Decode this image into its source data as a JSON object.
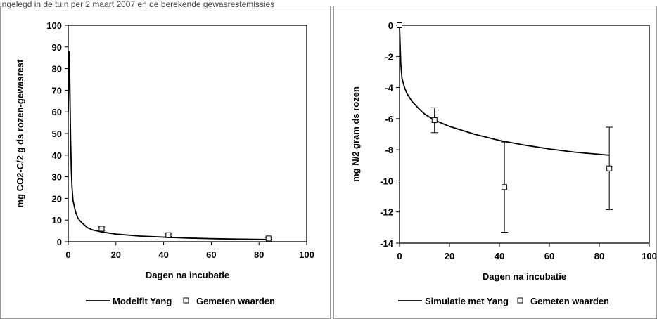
{
  "caption_fragment": "ingelegd in de tuin per 2 maart 2007 en de berekende gewasrestemissies",
  "chart_data": [
    {
      "type": "line",
      "xlabel": "Dagen na incubatie",
      "ylabel": "mg CO2-C/2 g ds rozen-gewasrest",
      "xlim": [
        0,
        100
      ],
      "ylim": [
        0,
        100
      ],
      "xticks": [
        0,
        20,
        40,
        60,
        80,
        100
      ],
      "yticks": [
        0,
        10,
        20,
        30,
        40,
        50,
        60,
        70,
        80,
        90,
        100
      ],
      "legend_position": "bottom",
      "series": [
        {
          "name": "Modelfit Yang",
          "kind": "line",
          "x": [
            0,
            0.2,
            0.4,
            0.6,
            0.8,
            1.0,
            1.3,
            1.6,
            2,
            3,
            4,
            5,
            6,
            8,
            10,
            14,
            20,
            30,
            42,
            50,
            60,
            70,
            84
          ],
          "y": [
            60,
            75,
            88,
            80,
            62,
            47,
            33,
            25,
            19,
            14,
            11,
            9.5,
            8.5,
            6.5,
            5.5,
            4.5,
            3.5,
            2.6,
            2.0,
            1.7,
            1.4,
            1.2,
            1.0
          ]
        },
        {
          "name": "Gemeten waarden",
          "kind": "marker",
          "x": [
            14,
            42,
            84
          ],
          "y": [
            6,
            3,
            1.5
          ],
          "err": [
            0.8,
            0.6,
            0.4
          ]
        }
      ]
    },
    {
      "type": "line",
      "xlabel": "Dagen na incubatie",
      "ylabel": "mg N/2 gram ds rozen",
      "xlim": [
        0,
        100
      ],
      "ylim": [
        -14,
        0
      ],
      "xticks": [
        0,
        20,
        40,
        60,
        80,
        100
      ],
      "yticks": [
        0,
        -2,
        -4,
        -6,
        -8,
        -10,
        -12,
        -14
      ],
      "legend_position": "bottom",
      "series": [
        {
          "name": "Simulatie met Yang",
          "kind": "line",
          "x": [
            0,
            0.5,
            1,
            2,
            3,
            5,
            8,
            10,
            14,
            20,
            30,
            40,
            50,
            60,
            70,
            84
          ],
          "y": [
            0,
            -2.5,
            -3.4,
            -4.0,
            -4.4,
            -4.9,
            -5.4,
            -5.7,
            -6.1,
            -6.5,
            -7.0,
            -7.4,
            -7.7,
            -7.95,
            -8.15,
            -8.35
          ]
        },
        {
          "name": "Gemeten waarden",
          "kind": "marker",
          "x": [
            0,
            14,
            42,
            84
          ],
          "y": [
            0,
            -6.1,
            -10.4,
            -9.2
          ],
          "err": [
            0,
            0.8,
            2.9,
            2.65
          ]
        }
      ]
    }
  ]
}
